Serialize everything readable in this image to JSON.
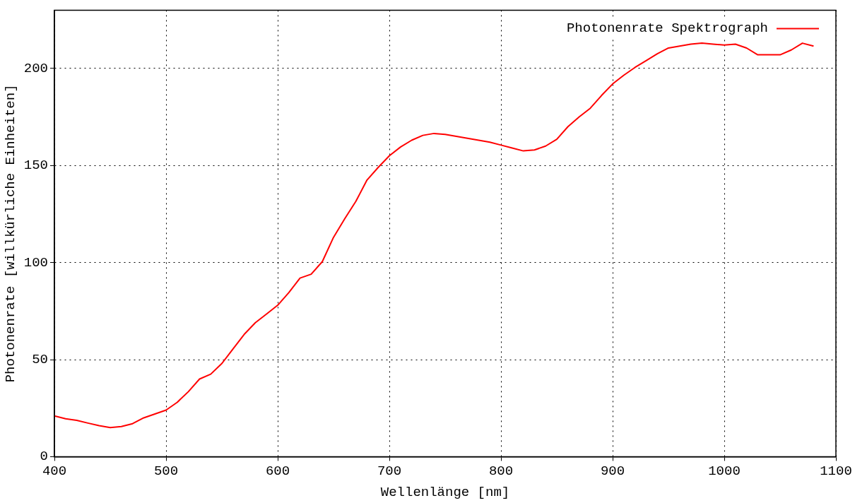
{
  "chart_data": {
    "type": "line",
    "xlabel": "Wellenlänge [nm]",
    "ylabel": "Photonenrate [willkürliche Einheiten]",
    "x": [
      400,
      410,
      420,
      430,
      440,
      450,
      460,
      470,
      480,
      490,
      500,
      510,
      520,
      530,
      540,
      550,
      560,
      570,
      580,
      590,
      600,
      610,
      620,
      630,
      640,
      650,
      660,
      670,
      680,
      690,
      700,
      710,
      720,
      730,
      740,
      750,
      760,
      770,
      780,
      790,
      800,
      810,
      820,
      830,
      840,
      850,
      860,
      870,
      880,
      890,
      900,
      910,
      920,
      930,
      940,
      950,
      960,
      970,
      980,
      990,
      1000,
      1010,
      1020,
      1030,
      1040,
      1050,
      1060,
      1070,
      1080
    ],
    "series": [
      {
        "name": "Photonenrate Spektrograph",
        "color": "#ff0000",
        "values": [
          21,
          19.5,
          18.7,
          17.3,
          16,
          15,
          15.5,
          17,
          20,
          22,
          24,
          28,
          33.5,
          40,
          42.5,
          48,
          55.5,
          63,
          69,
          73.5,
          78,
          84.5,
          92,
          94,
          100.5,
          113,
          122.5,
          131.5,
          142.5,
          149,
          155,
          159.5,
          163,
          165.5,
          166.5,
          166,
          165,
          164,
          163,
          162,
          160.5,
          159,
          157.5,
          158,
          160,
          163.5,
          170,
          175,
          179.5,
          186,
          192,
          196.5,
          200.5,
          204,
          207.5,
          210.5,
          211.5,
          212.5,
          213,
          212.5,
          212,
          212.5,
          210.5,
          207,
          207,
          207,
          209.5,
          213,
          211.5
        ]
      }
    ],
    "xlim": [
      400,
      1100
    ],
    "xticks": [
      400,
      500,
      600,
      700,
      800,
      900,
      1000,
      1100
    ],
    "ylim": [
      0,
      230
    ],
    "yticks": [
      0,
      50,
      100,
      150,
      200
    ],
    "grid": true,
    "legend": "top right",
    "marker": "none",
    "line_style": "solid"
  }
}
